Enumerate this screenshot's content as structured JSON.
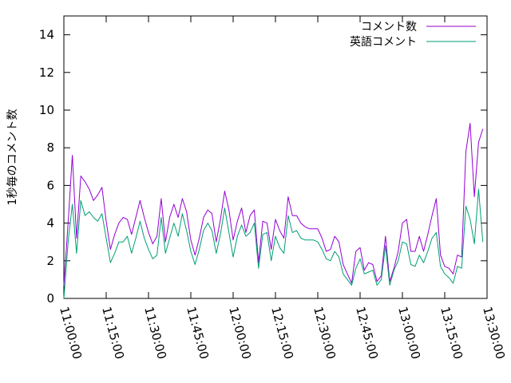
{
  "chart_data": {
    "type": "line",
    "title": "",
    "xlabel": "",
    "ylabel": "1秒毎のコメント数",
    "ylim": [
      0,
      15
    ],
    "yticks": [
      0,
      2,
      4,
      6,
      8,
      10,
      12,
      14
    ],
    "xlim": [
      "11:00:00",
      "13:30:00"
    ],
    "xticks": [
      "11:00:00",
      "11:15:00",
      "11:30:00",
      "11:45:00",
      "12:00:00",
      "12:15:00",
      "12:30:00",
      "12:45:00",
      "13:00:00",
      "13:15:00",
      "13:30:00"
    ],
    "legend_position": "top-right",
    "grid": false,
    "x": [
      "11:00:00",
      "11:01:30",
      "11:03:00",
      "11:04:30",
      "11:06:00",
      "11:07:30",
      "11:09:00",
      "11:10:30",
      "11:12:00",
      "11:13:30",
      "11:15:00",
      "11:16:30",
      "11:18:00",
      "11:19:30",
      "11:21:00",
      "11:22:30",
      "11:24:00",
      "11:25:30",
      "11:27:00",
      "11:28:30",
      "11:30:00",
      "11:31:30",
      "11:33:00",
      "11:34:30",
      "11:36:00",
      "11:37:30",
      "11:39:00",
      "11:40:30",
      "11:42:00",
      "11:43:30",
      "11:45:00",
      "11:46:30",
      "11:48:00",
      "11:49:30",
      "11:51:00",
      "11:52:30",
      "11:54:00",
      "11:55:30",
      "11:57:00",
      "11:58:30",
      "12:00:00",
      "12:01:30",
      "12:03:00",
      "12:04:30",
      "12:06:00",
      "12:07:30",
      "12:09:00",
      "12:10:30",
      "12:12:00",
      "12:13:30",
      "12:15:00",
      "12:16:30",
      "12:18:00",
      "12:19:30",
      "12:21:00",
      "12:22:30",
      "12:24:00",
      "12:25:30",
      "12:27:00",
      "12:28:30",
      "12:30:00",
      "12:31:30",
      "12:33:00",
      "12:34:30",
      "12:36:00",
      "12:37:30",
      "12:39:00",
      "12:40:30",
      "12:42:00",
      "12:43:30",
      "12:45:00",
      "12:46:30",
      "12:48:00",
      "12:49:30",
      "12:51:00",
      "12:52:30",
      "12:54:00",
      "12:55:30",
      "12:57:00",
      "12:58:30",
      "13:00:00",
      "13:01:30",
      "13:03:00",
      "13:04:30",
      "13:06:00",
      "13:07:30",
      "13:09:00",
      "13:10:30",
      "13:12:00",
      "13:13:30",
      "13:15:00",
      "13:16:30",
      "13:18:00",
      "13:19:30",
      "13:21:00",
      "13:22:30",
      "13:24:00",
      "13:25:30",
      "13:27:00",
      "13:28:30"
    ],
    "series": [
      {
        "name": "コメント数",
        "color": "#9400d3",
        "values": [
          0.7,
          4.0,
          7.6,
          3.2,
          6.5,
          6.2,
          5.8,
          5.2,
          5.5,
          5.9,
          4.1,
          2.6,
          3.4,
          4.0,
          4.3,
          4.2,
          3.4,
          4.3,
          5.2,
          4.3,
          3.5,
          2.9,
          3.3,
          5.3,
          3.0,
          4.3,
          5.0,
          4.3,
          5.3,
          4.6,
          3.1,
          2.3,
          3.2,
          4.3,
          4.7,
          4.5,
          3.0,
          4.2,
          5.7,
          4.7,
          3.1,
          4.1,
          4.8,
          3.5,
          4.4,
          4.7,
          1.9,
          4.1,
          4.0,
          2.6,
          4.2,
          3.6,
          3.2,
          5.4,
          4.4,
          4.4,
          4.0,
          3.8,
          3.7,
          3.7,
          3.7,
          3.2,
          2.5,
          2.6,
          3.3,
          3.0,
          1.8,
          1.3,
          0.8,
          2.5,
          2.7,
          1.5,
          1.9,
          1.8,
          0.9,
          1.2,
          3.3,
          0.9,
          1.6,
          2.5,
          4.0,
          4.2,
          2.5,
          2.5,
          3.3,
          2.5,
          3.4,
          4.4,
          5.3,
          2.3,
          1.7,
          1.6,
          1.3,
          2.3,
          2.2,
          7.8,
          9.3,
          5.4,
          8.3,
          9.0
        ]
      },
      {
        "name": "英語コメント",
        "color": "#009e73",
        "values": [
          0.0,
          3.0,
          5.0,
          2.4,
          5.2,
          4.4,
          4.6,
          4.3,
          4.1,
          4.5,
          3.2,
          1.9,
          2.4,
          3.0,
          3.0,
          3.3,
          2.4,
          3.2,
          4.1,
          3.2,
          2.6,
          2.1,
          2.3,
          4.3,
          2.4,
          3.2,
          4.0,
          3.3,
          4.5,
          3.6,
          2.5,
          1.8,
          2.6,
          3.6,
          4.0,
          3.6,
          2.4,
          3.4,
          4.8,
          3.5,
          2.2,
          3.3,
          3.9,
          3.3,
          3.5,
          4.0,
          1.6,
          3.4,
          3.5,
          2.0,
          3.3,
          2.7,
          2.4,
          4.4,
          3.5,
          3.6,
          3.2,
          3.1,
          3.1,
          3.1,
          3.0,
          2.6,
          2.1,
          2.0,
          2.5,
          2.2,
          1.3,
          1.0,
          0.7,
          1.6,
          2.1,
          1.3,
          1.4,
          1.5,
          0.7,
          1.0,
          2.8,
          0.7,
          1.5,
          2.0,
          3.0,
          2.9,
          1.8,
          1.7,
          2.3,
          1.9,
          2.5,
          3.2,
          3.5,
          1.7,
          1.3,
          1.1,
          0.8,
          1.7,
          1.6,
          4.9,
          4.2,
          2.9,
          5.8,
          3.0
        ]
      }
    ]
  }
}
